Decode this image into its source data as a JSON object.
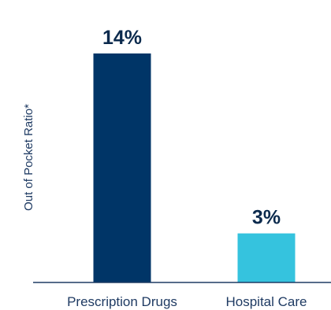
{
  "chart_data": {
    "type": "bar",
    "categories": [
      "Prescription Drugs",
      "Hospital Care"
    ],
    "values": [
      14,
      3
    ],
    "data_labels": [
      "14%",
      "3%"
    ],
    "ylabel": "Out of Pocket Ratio*",
    "xlabel": "",
    "ylim": [
      0,
      15.2
    ],
    "grid": false,
    "legend": "none",
    "colors": [
      "#003567",
      "#35c3de"
    ],
    "axis_color": "#1f3b63"
  }
}
